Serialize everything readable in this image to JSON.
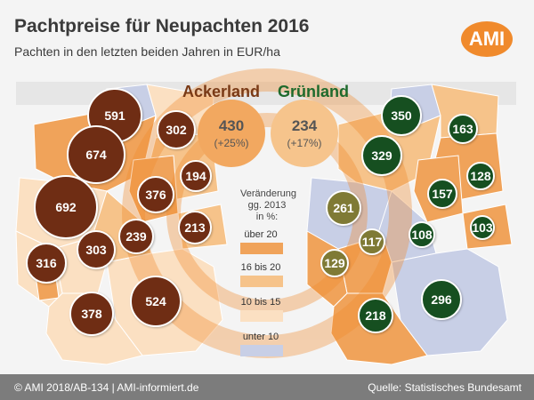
{
  "title": "Pachtpreise für Neupachten 2016",
  "subtitle": "Pachten in den letzten beiden Jahren in EUR/ha",
  "logo": "AMI",
  "headers": {
    "ackerland": "Ackerland",
    "gruenland": "Grünland"
  },
  "national": {
    "ackerland": {
      "value": "430",
      "change": "(+25%)"
    },
    "gruenland": {
      "value": "234",
      "change": "(+17%)"
    }
  },
  "legend": {
    "title_lines": [
      "Veränderung",
      "gg. 2013",
      "in %:"
    ],
    "classes": [
      {
        "label": "über 20",
        "color": "#f0a35a"
      },
      {
        "label": "16 bis 20",
        "color": "#f6c38a"
      },
      {
        "label": "10 bis 15",
        "color": "#fbe0c2"
      },
      {
        "label": "unter 10",
        "color": "#c8cfe6"
      }
    ]
  },
  "ackerland_values": [
    "591",
    "302",
    "674",
    "194",
    "376",
    "692",
    "239",
    "213",
    "303",
    "316",
    "524",
    "378"
  ],
  "gruenland_values": [
    "350",
    "163",
    "329",
    "128",
    "261",
    "157",
    "117",
    "108",
    "103",
    "129",
    "218",
    "296"
  ],
  "colors": {
    "ackerland_bubble": "#6f2d14",
    "gruenland_bubble": "#164f20",
    "accent": "#f08a2c"
  },
  "footer": {
    "left": "© AMI 2018/AB-134 | AMI-informiert.de",
    "right": "Quelle: Statistisches Bundesamt"
  }
}
